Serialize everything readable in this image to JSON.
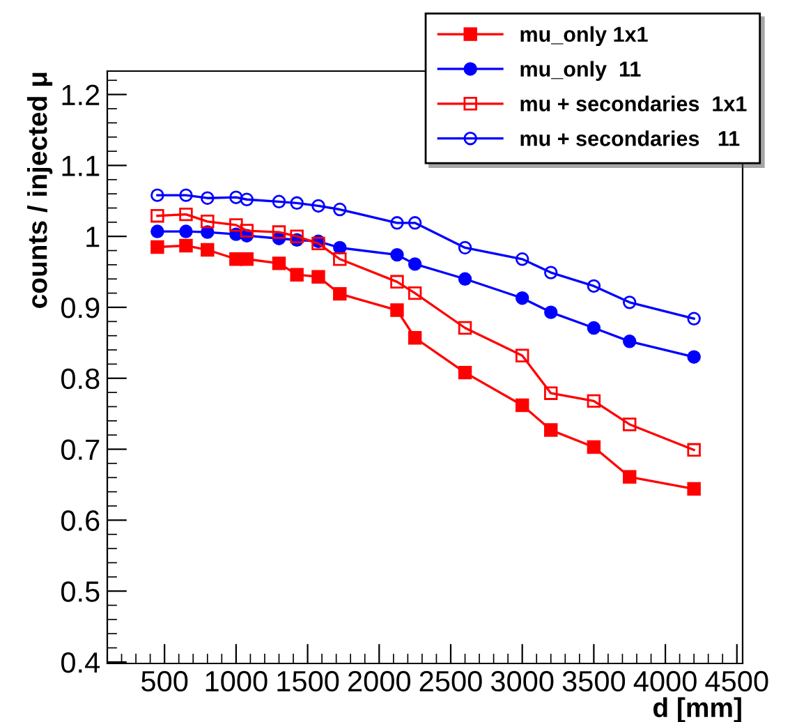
{
  "chart_data": {
    "type": "line",
    "xlabel": "d [mm]",
    "ylabel": "counts / injected μ",
    "x": [
      450,
      650,
      800,
      1000,
      1075,
      1300,
      1425,
      1575,
      1725,
      2125,
      2250,
      2600,
      3000,
      3200,
      3500,
      3750,
      4200
    ],
    "series": [
      {
        "name": "mu_only 1x1",
        "color": "#ff0000",
        "marker": "square",
        "values": [
          0.985,
          0.987,
          0.981,
          0.968,
          0.968,
          0.962,
          0.946,
          0.943,
          0.919,
          0.896,
          0.857,
          0.808,
          0.762,
          0.727,
          0.703,
          0.661,
          0.644
        ]
      },
      {
        "name": "mu_only  11",
        "color": "#0000ff",
        "marker": "circle",
        "values": [
          1.007,
          1.007,
          1.006,
          1.003,
          1.001,
          0.997,
          0.995,
          0.993,
          0.984,
          0.974,
          0.961,
          0.94,
          0.913,
          0.893,
          0.871,
          0.852,
          0.83
        ]
      },
      {
        "name": "mu + secondaries  1x1",
        "color": "#ff0000",
        "marker": "square",
        "values": [
          1.029,
          1.031,
          1.021,
          1.016,
          1.008,
          1.006,
          1.0,
          0.99,
          0.968,
          0.936,
          0.92,
          0.871,
          0.832,
          0.779,
          0.768,
          0.735,
          0.699
        ]
      },
      {
        "name": "mu + secondaries   11",
        "color": "#0000ff",
        "marker": "circle",
        "values": [
          1.058,
          1.058,
          1.054,
          1.055,
          1.052,
          1.049,
          1.047,
          1.043,
          1.038,
          1.019,
          1.019,
          0.984,
          0.968,
          0.949,
          0.93,
          0.907,
          0.884
        ]
      }
    ],
    "xlim": [
      100,
      4540
    ],
    "ylim": [
      0.398,
      1.233
    ],
    "xticks": [
      500,
      1000,
      1500,
      2000,
      2500,
      3000,
      3500,
      4000,
      4500
    ],
    "yticks": [
      0.4,
      0.5,
      0.6,
      0.7,
      0.8,
      0.9,
      1,
      1.1,
      1.2
    ],
    "grid": false,
    "legend": "top right",
    "line_style": "solid"
  }
}
